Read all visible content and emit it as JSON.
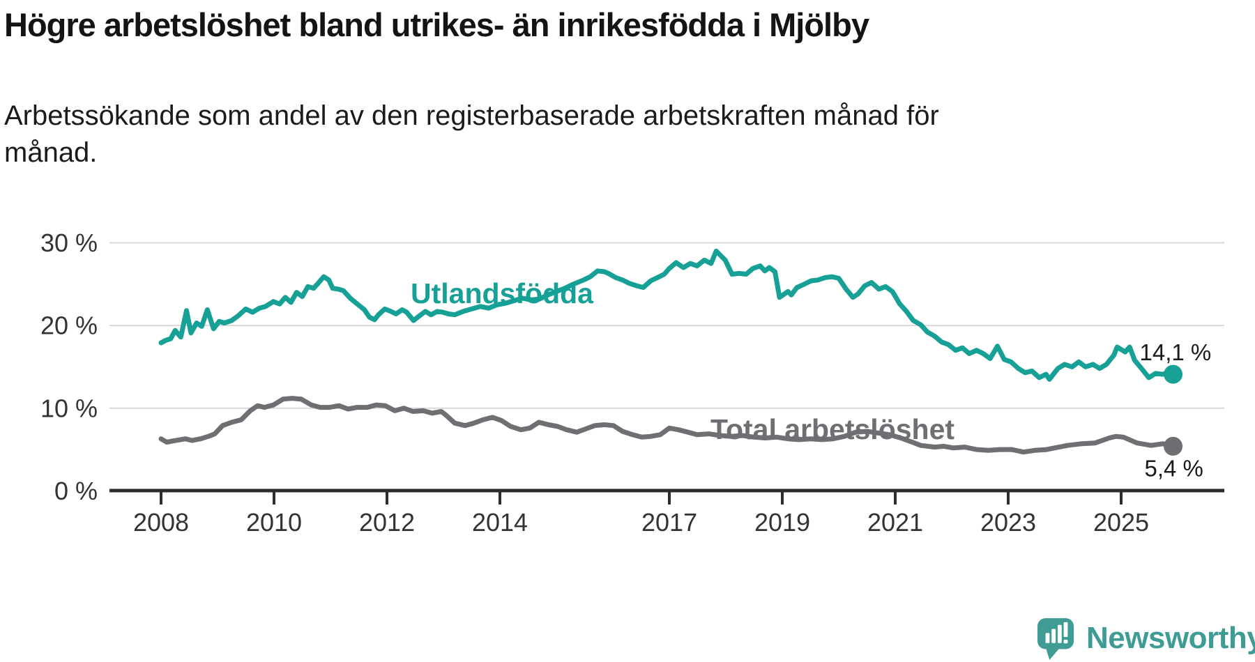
{
  "title": "Högre arbetslöshet bland utrikes- än inrikesfödda i Mjölby",
  "subtitle_line1": "Arbetssökande som andel av den registerbaserade arbetskraften månad för",
  "subtitle_line2": "månad.",
  "branding": {
    "logo_text": "Newsworthy",
    "logo_icon": "bar-chart-speech-bubble-icon",
    "logo_color": "#3f9c95"
  },
  "colors": {
    "grid": "#d9d9d9",
    "axis": "#2e2e2e",
    "tick_text": "#333333",
    "end_label_text": "#1a1a1a",
    "title_text": "#141414"
  },
  "chart_data": {
    "type": "line",
    "title": "Högre arbetslöshet bland utrikes- än inrikesfödda i Mjölby",
    "xlabel": "",
    "ylabel": "",
    "x_unit": "year (monthly data)",
    "y_unit": "%",
    "xlim": [
      2007.9,
      2026.8
    ],
    "ylim": [
      0,
      31
    ],
    "grid": "horizontal",
    "legend_position": "inline-labels-on-lines",
    "x_tick_years": [
      2008,
      2010,
      2012,
      2014,
      2017,
      2019,
      2021,
      2023,
      2025
    ],
    "y_ticks": [
      {
        "value": 0,
        "label": "0 %"
      },
      {
        "value": 10,
        "label": "10 %"
      },
      {
        "value": 20,
        "label": "20 %"
      },
      {
        "value": 30,
        "label": "30 %"
      }
    ],
    "series": [
      {
        "name": "Utlandsfödda",
        "color": "#16a096",
        "end_label": "14,1 %",
        "last_value": 14.1,
        "points": [
          [
            2008.0,
            17.9
          ],
          [
            2008.08,
            18.2
          ],
          [
            2008.17,
            18.4
          ],
          [
            2008.25,
            19.4
          ],
          [
            2008.35,
            18.6
          ],
          [
            2008.45,
            21.8
          ],
          [
            2008.53,
            19.1
          ],
          [
            2008.63,
            20.3
          ],
          [
            2008.72,
            19.9
          ],
          [
            2008.82,
            21.9
          ],
          [
            2008.93,
            19.6
          ],
          [
            2009.03,
            20.5
          ],
          [
            2009.12,
            20.3
          ],
          [
            2009.25,
            20.6
          ],
          [
            2009.37,
            21.2
          ],
          [
            2009.5,
            22.0
          ],
          [
            2009.62,
            21.6
          ],
          [
            2009.74,
            22.1
          ],
          [
            2009.85,
            22.3
          ],
          [
            2009.99,
            22.9
          ],
          [
            2010.1,
            22.6
          ],
          [
            2010.2,
            23.4
          ],
          [
            2010.3,
            22.8
          ],
          [
            2010.4,
            24.0
          ],
          [
            2010.5,
            23.5
          ],
          [
            2010.6,
            24.7
          ],
          [
            2010.7,
            24.5
          ],
          [
            2010.78,
            25.1
          ],
          [
            2010.88,
            25.9
          ],
          [
            2010.97,
            25.5
          ],
          [
            2011.04,
            24.5
          ],
          [
            2011.14,
            24.4
          ],
          [
            2011.23,
            24.2
          ],
          [
            2011.35,
            23.3
          ],
          [
            2011.44,
            22.8
          ],
          [
            2011.53,
            22.3
          ],
          [
            2011.6,
            21.9
          ],
          [
            2011.69,
            21.0
          ],
          [
            2011.78,
            20.7
          ],
          [
            2011.85,
            21.3
          ],
          [
            2011.96,
            22.0
          ],
          [
            2012.07,
            21.7
          ],
          [
            2012.16,
            21.4
          ],
          [
            2012.27,
            21.9
          ],
          [
            2012.35,
            21.6
          ],
          [
            2012.47,
            20.6
          ],
          [
            2012.58,
            21.2
          ],
          [
            2012.68,
            21.7
          ],
          [
            2012.78,
            21.3
          ],
          [
            2012.89,
            21.7
          ],
          [
            2012.99,
            21.6
          ],
          [
            2013.09,
            21.4
          ],
          [
            2013.2,
            21.3
          ],
          [
            2013.35,
            21.7
          ],
          [
            2013.5,
            22.0
          ],
          [
            2013.65,
            22.3
          ],
          [
            2013.8,
            22.1
          ],
          [
            2013.95,
            22.5
          ],
          [
            2014.1,
            22.7
          ],
          [
            2014.25,
            23.0
          ],
          [
            2014.4,
            23.3
          ],
          [
            2014.55,
            23.1
          ],
          [
            2014.7,
            23.2
          ],
          [
            2014.85,
            23.7
          ],
          [
            2015.0,
            24.1
          ],
          [
            2015.15,
            24.5
          ],
          [
            2015.3,
            25.0
          ],
          [
            2015.48,
            25.5
          ],
          [
            2015.6,
            25.9
          ],
          [
            2015.73,
            26.6
          ],
          [
            2015.85,
            26.5
          ],
          [
            2015.92,
            26.3
          ],
          [
            2016.05,
            25.8
          ],
          [
            2016.17,
            25.5
          ],
          [
            2016.29,
            25.1
          ],
          [
            2016.42,
            24.8
          ],
          [
            2016.54,
            24.6
          ],
          [
            2016.67,
            25.4
          ],
          [
            2016.79,
            25.8
          ],
          [
            2016.91,
            26.2
          ],
          [
            2017.0,
            26.9
          ],
          [
            2017.12,
            27.6
          ],
          [
            2017.25,
            27.0
          ],
          [
            2017.37,
            27.5
          ],
          [
            2017.49,
            27.2
          ],
          [
            2017.62,
            27.9
          ],
          [
            2017.74,
            27.5
          ],
          [
            2017.83,
            29.0
          ],
          [
            2017.99,
            27.9
          ],
          [
            2018.11,
            26.2
          ],
          [
            2018.24,
            26.3
          ],
          [
            2018.36,
            26.2
          ],
          [
            2018.48,
            26.9
          ],
          [
            2018.61,
            27.2
          ],
          [
            2018.69,
            26.6
          ],
          [
            2018.77,
            27.0
          ],
          [
            2018.87,
            26.5
          ],
          [
            2018.95,
            23.4
          ],
          [
            2019.1,
            24.1
          ],
          [
            2019.16,
            23.7
          ],
          [
            2019.26,
            24.6
          ],
          [
            2019.39,
            25.0
          ],
          [
            2019.51,
            25.4
          ],
          [
            2019.63,
            25.5
          ],
          [
            2019.76,
            25.8
          ],
          [
            2019.88,
            25.9
          ],
          [
            2020.0,
            25.7
          ],
          [
            2020.13,
            24.4
          ],
          [
            2020.25,
            23.4
          ],
          [
            2020.34,
            23.8
          ],
          [
            2020.46,
            24.8
          ],
          [
            2020.58,
            25.2
          ],
          [
            2020.71,
            24.4
          ],
          [
            2020.83,
            24.7
          ],
          [
            2020.95,
            24.1
          ],
          [
            2021.08,
            22.6
          ],
          [
            2021.2,
            21.7
          ],
          [
            2021.32,
            20.6
          ],
          [
            2021.45,
            20.1
          ],
          [
            2021.57,
            19.2
          ],
          [
            2021.7,
            18.7
          ],
          [
            2021.82,
            18.0
          ],
          [
            2021.94,
            17.7
          ],
          [
            2022.07,
            17.0
          ],
          [
            2022.19,
            17.3
          ],
          [
            2022.31,
            16.6
          ],
          [
            2022.44,
            17.0
          ],
          [
            2022.56,
            16.6
          ],
          [
            2022.68,
            16.0
          ],
          [
            2022.81,
            17.5
          ],
          [
            2022.93,
            15.9
          ],
          [
            2023.05,
            15.6
          ],
          [
            2023.18,
            14.8
          ],
          [
            2023.3,
            14.3
          ],
          [
            2023.42,
            14.5
          ],
          [
            2023.55,
            13.7
          ],
          [
            2023.67,
            14.1
          ],
          [
            2023.73,
            13.5
          ],
          [
            2023.88,
            14.8
          ],
          [
            2024.0,
            15.3
          ],
          [
            2024.13,
            15.0
          ],
          [
            2024.25,
            15.6
          ],
          [
            2024.37,
            15.0
          ],
          [
            2024.5,
            15.3
          ],
          [
            2024.62,
            14.8
          ],
          [
            2024.74,
            15.3
          ],
          [
            2024.87,
            16.4
          ],
          [
            2024.93,
            17.4
          ],
          [
            2025.0,
            17.1
          ],
          [
            2025.07,
            16.8
          ],
          [
            2025.15,
            17.4
          ],
          [
            2025.24,
            15.8
          ],
          [
            2025.36,
            14.8
          ],
          [
            2025.49,
            13.7
          ],
          [
            2025.61,
            14.2
          ],
          [
            2025.73,
            14.1
          ],
          [
            2025.85,
            14.3
          ],
          [
            2025.92,
            14.1
          ]
        ]
      },
      {
        "name": "Total arbetslöshet",
        "color": "#6f6f73",
        "end_label": "5,4 %",
        "last_value": 5.4,
        "points": [
          [
            2008.0,
            6.3
          ],
          [
            2008.1,
            5.9
          ],
          [
            2008.26,
            6.1
          ],
          [
            2008.43,
            6.3
          ],
          [
            2008.55,
            6.1
          ],
          [
            2008.7,
            6.3
          ],
          [
            2008.84,
            6.6
          ],
          [
            2008.95,
            6.9
          ],
          [
            2009.09,
            7.9
          ],
          [
            2009.25,
            8.3
          ],
          [
            2009.42,
            8.6
          ],
          [
            2009.58,
            9.7
          ],
          [
            2009.71,
            10.3
          ],
          [
            2009.83,
            10.1
          ],
          [
            2009.99,
            10.4
          ],
          [
            2010.16,
            11.1
          ],
          [
            2010.32,
            11.2
          ],
          [
            2010.48,
            11.1
          ],
          [
            2010.66,
            10.4
          ],
          [
            2010.82,
            10.1
          ],
          [
            2010.98,
            10.1
          ],
          [
            2011.15,
            10.3
          ],
          [
            2011.31,
            9.9
          ],
          [
            2011.47,
            10.1
          ],
          [
            2011.65,
            10.1
          ],
          [
            2011.81,
            10.4
          ],
          [
            2011.97,
            10.3
          ],
          [
            2012.14,
            9.7
          ],
          [
            2012.3,
            10.0
          ],
          [
            2012.46,
            9.6
          ],
          [
            2012.64,
            9.7
          ],
          [
            2012.8,
            9.4
          ],
          [
            2012.96,
            9.6
          ],
          [
            2013.04,
            9.2
          ],
          [
            2013.2,
            8.2
          ],
          [
            2013.38,
            7.9
          ],
          [
            2013.54,
            8.2
          ],
          [
            2013.7,
            8.6
          ],
          [
            2013.87,
            8.9
          ],
          [
            2014.03,
            8.5
          ],
          [
            2014.19,
            7.8
          ],
          [
            2014.37,
            7.4
          ],
          [
            2014.53,
            7.6
          ],
          [
            2014.69,
            8.3
          ],
          [
            2014.86,
            8.0
          ],
          [
            2015.02,
            7.8
          ],
          [
            2015.18,
            7.4
          ],
          [
            2015.36,
            7.1
          ],
          [
            2015.52,
            7.5
          ],
          [
            2015.68,
            7.9
          ],
          [
            2015.85,
            8.0
          ],
          [
            2016.01,
            7.9
          ],
          [
            2016.17,
            7.2
          ],
          [
            2016.35,
            6.8
          ],
          [
            2016.51,
            6.5
          ],
          [
            2016.67,
            6.6
          ],
          [
            2016.84,
            6.8
          ],
          [
            2017.0,
            7.6
          ],
          [
            2017.16,
            7.4
          ],
          [
            2017.33,
            7.1
          ],
          [
            2017.49,
            6.8
          ],
          [
            2017.7,
            6.9
          ],
          [
            2017.9,
            6.7
          ],
          [
            2018.1,
            6.6
          ],
          [
            2018.3,
            6.7
          ],
          [
            2018.5,
            6.5
          ],
          [
            2018.7,
            6.4
          ],
          [
            2018.9,
            6.5
          ],
          [
            2019.1,
            6.3
          ],
          [
            2019.3,
            6.2
          ],
          [
            2019.5,
            6.3
          ],
          [
            2019.7,
            6.2
          ],
          [
            2019.9,
            6.3
          ],
          [
            2020.1,
            6.6
          ],
          [
            2020.3,
            7.1
          ],
          [
            2020.5,
            7.2
          ],
          [
            2020.7,
            7.0
          ],
          [
            2020.9,
            6.8
          ],
          [
            2021.1,
            6.4
          ],
          [
            2021.3,
            5.9
          ],
          [
            2021.45,
            5.5
          ],
          [
            2021.7,
            5.3
          ],
          [
            2021.86,
            5.4
          ],
          [
            2022.03,
            5.2
          ],
          [
            2022.23,
            5.3
          ],
          [
            2022.44,
            5.0
          ],
          [
            2022.65,
            4.9
          ],
          [
            2022.85,
            5.0
          ],
          [
            2023.06,
            5.0
          ],
          [
            2023.27,
            4.7
          ],
          [
            2023.47,
            4.9
          ],
          [
            2023.68,
            5.0
          ],
          [
            2023.9,
            5.3
          ],
          [
            2024.05,
            5.5
          ],
          [
            2024.3,
            5.7
          ],
          [
            2024.54,
            5.8
          ],
          [
            2024.79,
            6.4
          ],
          [
            2024.91,
            6.6
          ],
          [
            2025.04,
            6.5
          ],
          [
            2025.28,
            5.8
          ],
          [
            2025.53,
            5.5
          ],
          [
            2025.74,
            5.7
          ],
          [
            2025.92,
            5.4
          ]
        ]
      }
    ]
  }
}
